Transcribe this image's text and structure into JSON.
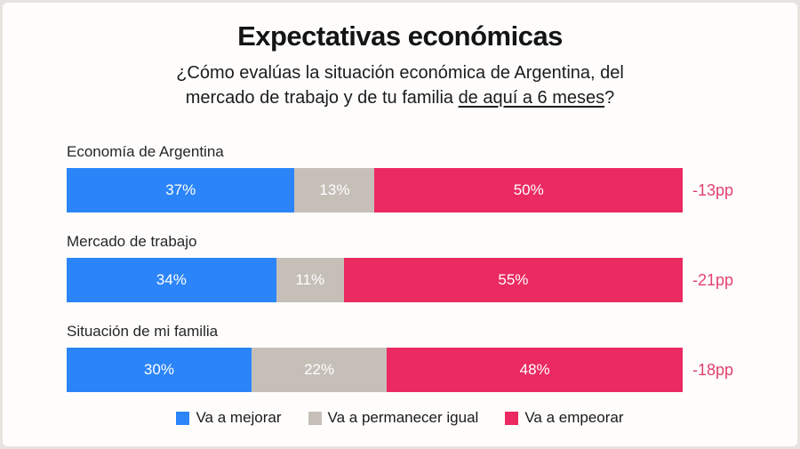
{
  "header": {
    "title": "Expectativas económicas",
    "subtitle_line1": "¿Cómo evalúas la situación económica de Argentina, del",
    "subtitle_line2_prefix": "mercado de trabajo y de tu familia ",
    "subtitle_underlined": "de aquí a 6 meses",
    "subtitle_suffix": "?"
  },
  "colors": {
    "mejorar": "#2b84f8",
    "igual": "#c6bfb8",
    "empeorar": "#ea2a61",
    "delta_text": "#e2416d"
  },
  "rows": [
    {
      "label": "Economía de Argentina",
      "delta": "-13pp",
      "segments": [
        {
          "name": "mejorar",
          "value": 37,
          "text": "37%"
        },
        {
          "name": "igual",
          "value": 13,
          "text": "13%"
        },
        {
          "name": "empeorar",
          "value": 50,
          "text": "50%"
        }
      ]
    },
    {
      "label": "Mercado de trabajo",
      "delta": "-21pp",
      "segments": [
        {
          "name": "mejorar",
          "value": 34,
          "text": "34%"
        },
        {
          "name": "igual",
          "value": 11,
          "text": "11%"
        },
        {
          "name": "empeorar",
          "value": 55,
          "text": "55%"
        }
      ]
    },
    {
      "label": "Situación de mi familia",
      "delta": "-18pp",
      "segments": [
        {
          "name": "mejorar",
          "value": 30,
          "text": "30%"
        },
        {
          "name": "igual",
          "value": 22,
          "text": "22%"
        },
        {
          "name": "empeorar",
          "value": 48,
          "text": "48%"
        }
      ]
    }
  ],
  "legend": [
    {
      "label": "Va a mejorar"
    },
    {
      "label": "Va a permanecer igual"
    },
    {
      "label": "Va a empeorar"
    }
  ],
  "chart_data": {
    "type": "bar",
    "subtype": "horizontal-stacked-100pct",
    "title": "Expectativas económicas",
    "subtitle": "¿Cómo evalúas la situación económica de Argentina, del mercado de trabajo y de tu familia de aquí a 6 meses?",
    "categories": [
      "Economía de Argentina",
      "Mercado de trabajo",
      "Situación de mi familia"
    ],
    "series": [
      {
        "name": "Va a mejorar",
        "values": [
          37,
          34,
          30
        ],
        "color": "#2b84f8"
      },
      {
        "name": "Va a permanecer igual",
        "values": [
          13,
          11,
          22
        ],
        "color": "#c6bfb8"
      },
      {
        "name": "Va a empeorar",
        "values": [
          50,
          55,
          48
        ],
        "color": "#ea2a61"
      }
    ],
    "annotations": [
      {
        "category": "Economía de Argentina",
        "label": "-13pp"
      },
      {
        "category": "Mercado de trabajo",
        "label": "-21pp"
      },
      {
        "category": "Situación de mi familia",
        "label": "-18pp"
      }
    ],
    "xlim": [
      0,
      100
    ],
    "grid": false,
    "legend_position": "bottom",
    "value_labels": "inside-white"
  }
}
